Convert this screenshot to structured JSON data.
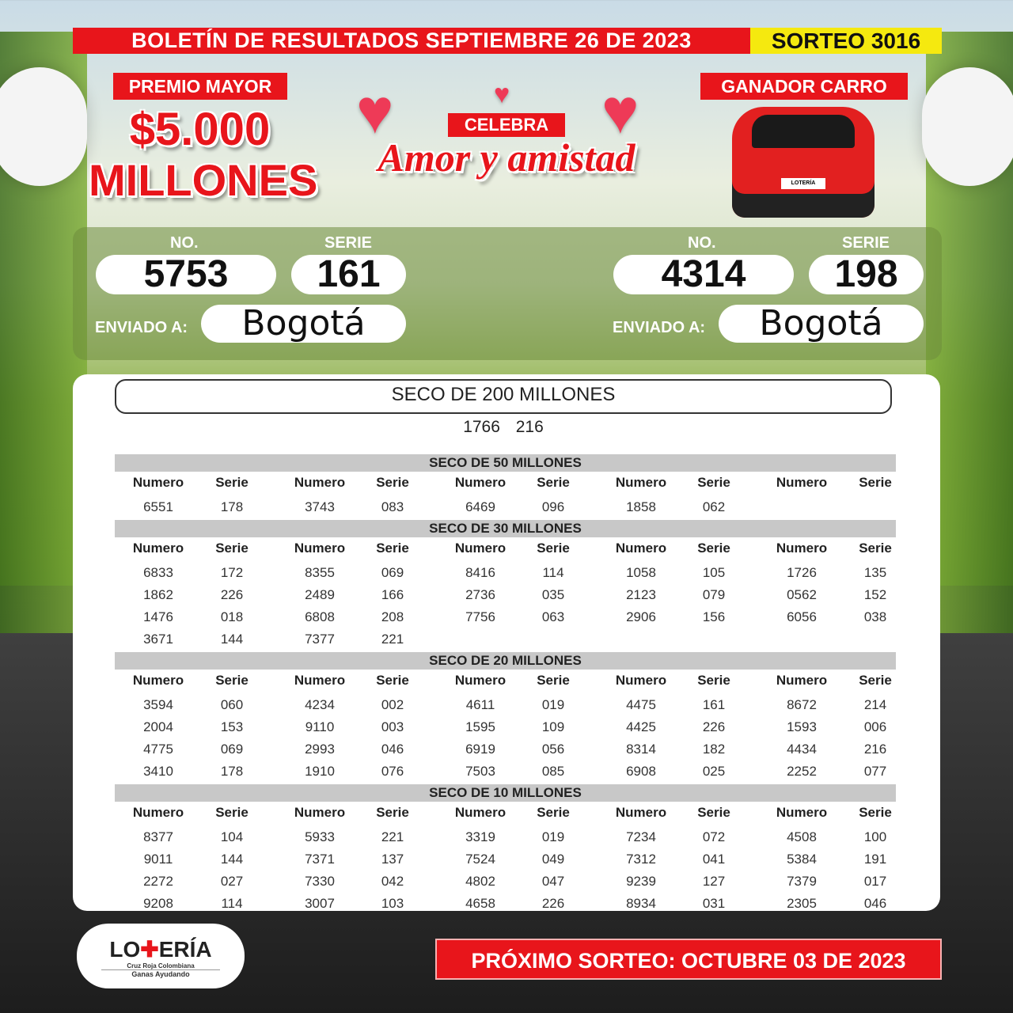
{
  "header": {
    "title": "BOLETÍN DE RESULTADOS SEPTIEMBRE 26 DE 2023",
    "sorteo": "SORTEO 3016"
  },
  "premio_mayor": {
    "label": "PREMIO MAYOR",
    "amount": "$5.000",
    "unit": "MILLONES"
  },
  "celebra": {
    "label": "CELEBRA",
    "title": "Amor y amistad"
  },
  "ganador_carro": {
    "label": "GANADOR CARRO",
    "plate": "LOTERÍA"
  },
  "results": [
    {
      "no_label": "NO.",
      "serie_label": "SERIE",
      "numero": "5753",
      "serie": "161",
      "enviado_label": "ENVIADO A:",
      "ciudad": "Bogotá"
    },
    {
      "no_label": "NO.",
      "serie_label": "SERIE",
      "numero": "4314",
      "serie": "198",
      "enviado_label": "ENVIADO A:",
      "ciudad": "Bogotá"
    }
  ],
  "seco200": {
    "title": "SECO DE 200 MILLONES",
    "numero": "1766",
    "serie": "216"
  },
  "column_labels": {
    "numero": "Numero",
    "serie": "Serie"
  },
  "sections": [
    {
      "title": "SECO DE 50 MILLONES",
      "rows": [
        [
          [
            "6551",
            "178"
          ],
          [
            "3743",
            "083"
          ],
          [
            "6469",
            "096"
          ],
          [
            "1858",
            "062"
          ]
        ]
      ]
    },
    {
      "title": "SECO DE 30 MILLONES",
      "rows": [
        [
          [
            "6833",
            "172"
          ],
          [
            "8355",
            "069"
          ],
          [
            "8416",
            "114"
          ],
          [
            "1058",
            "105"
          ],
          [
            "1726",
            "135"
          ]
        ],
        [
          [
            "1862",
            "226"
          ],
          [
            "2489",
            "166"
          ],
          [
            "2736",
            "035"
          ],
          [
            "2123",
            "079"
          ],
          [
            "0562",
            "152"
          ]
        ],
        [
          [
            "1476",
            "018"
          ],
          [
            "6808",
            "208"
          ],
          [
            "7756",
            "063"
          ],
          [
            "2906",
            "156"
          ],
          [
            "6056",
            "038"
          ]
        ],
        [
          [
            "3671",
            "144"
          ],
          [
            "7377",
            "221"
          ]
        ]
      ]
    },
    {
      "title": "SECO DE 20 MILLONES",
      "rows": [
        [
          [
            "3594",
            "060"
          ],
          [
            "4234",
            "002"
          ],
          [
            "4611",
            "019"
          ],
          [
            "4475",
            "161"
          ],
          [
            "8672",
            "214"
          ]
        ],
        [
          [
            "2004",
            "153"
          ],
          [
            "9110",
            "003"
          ],
          [
            "1595",
            "109"
          ],
          [
            "4425",
            "226"
          ],
          [
            "1593",
            "006"
          ]
        ],
        [
          [
            "4775",
            "069"
          ],
          [
            "2993",
            "046"
          ],
          [
            "6919",
            "056"
          ],
          [
            "8314",
            "182"
          ],
          [
            "4434",
            "216"
          ]
        ],
        [
          [
            "3410",
            "178"
          ],
          [
            "1910",
            "076"
          ],
          [
            "7503",
            "085"
          ],
          [
            "6908",
            "025"
          ],
          [
            "2252",
            "077"
          ]
        ]
      ]
    },
    {
      "title": "SECO DE 10 MILLONES",
      "rows": [
        [
          [
            "8377",
            "104"
          ],
          [
            "5933",
            "221"
          ],
          [
            "3319",
            "019"
          ],
          [
            "7234",
            "072"
          ],
          [
            "4508",
            "100"
          ]
        ],
        [
          [
            "9011",
            "144"
          ],
          [
            "7371",
            "137"
          ],
          [
            "7524",
            "049"
          ],
          [
            "7312",
            "041"
          ],
          [
            "5384",
            "191"
          ]
        ],
        [
          [
            "2272",
            "027"
          ],
          [
            "7330",
            "042"
          ],
          [
            "4802",
            "047"
          ],
          [
            "9239",
            "127"
          ],
          [
            "7379",
            "017"
          ]
        ],
        [
          [
            "9208",
            "114"
          ],
          [
            "3007",
            "103"
          ],
          [
            "4658",
            "226"
          ],
          [
            "8934",
            "031"
          ],
          [
            "2305",
            "046"
          ]
        ]
      ]
    }
  ],
  "logo": {
    "name": "LOTERÍA",
    "sub": "de la Cruz Roja Colombiana",
    "tagline": "Ganas Ayudando"
  },
  "footer": {
    "next": "PRÓXIMO SORTEO: OCTUBRE 03 DE 2023"
  },
  "colors": {
    "red": "#e8151b",
    "yellow": "#f5e90f",
    "gray": "#c8c8c8"
  }
}
